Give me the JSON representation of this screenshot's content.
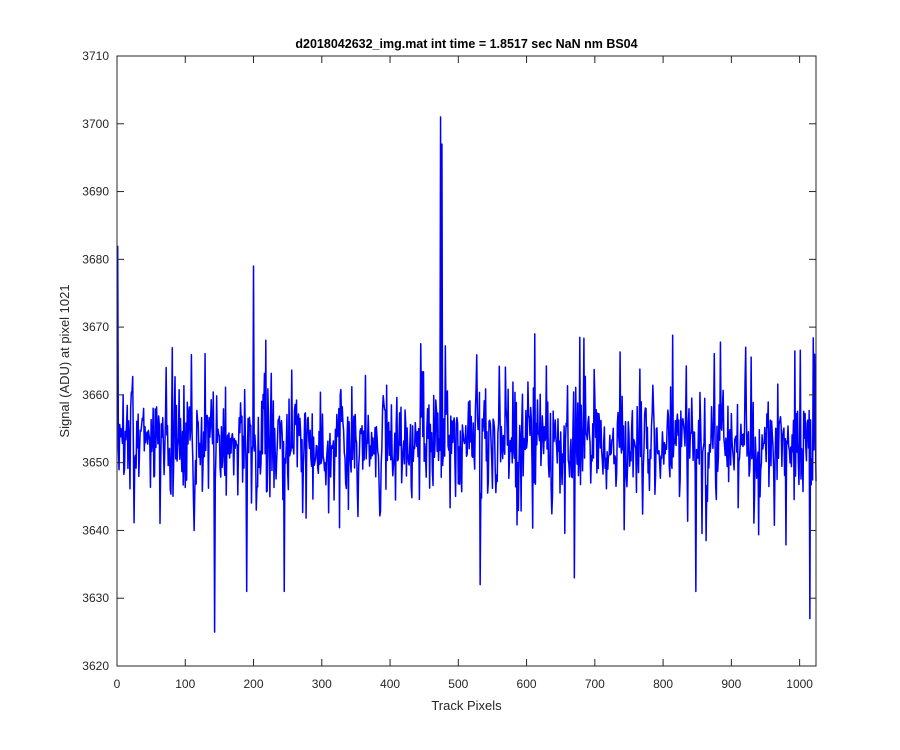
{
  "chart_data": {
    "type": "line",
    "title": "d2018042632_img.mat int time = 1.8517 sec  NaN nm BS04",
    "xlabel": "Track Pixels",
    "ylabel": "Signal (ADU) at pixel 1021",
    "xlim": [
      0,
      1024
    ],
    "ylim": [
      3620,
      3710
    ],
    "xticks": [
      0,
      100,
      200,
      300,
      400,
      500,
      600,
      700,
      800,
      900,
      1000
    ],
    "yticks": [
      3620,
      3630,
      3640,
      3650,
      3660,
      3670,
      3680,
      3690,
      3700,
      3710
    ],
    "grid": false,
    "colors": {
      "line": "#0000ff",
      "axes": "#262626",
      "background": "#ffffff"
    },
    "series": [
      {
        "x_start": 1,
        "x_end": 1024,
        "n_points": 1024,
        "baseline": 3653,
        "noise_range": [
          3642,
          3665
        ],
        "peaks": [
          {
            "x": 1,
            "y": 3682
          },
          {
            "x": 143,
            "y": 3625
          },
          {
            "x": 190,
            "y": 3631
          },
          {
            "x": 200,
            "y": 3679
          },
          {
            "x": 245,
            "y": 3631
          },
          {
            "x": 474,
            "y": 3701
          },
          {
            "x": 476,
            "y": 3697
          },
          {
            "x": 532,
            "y": 3632
          },
          {
            "x": 612,
            "y": 3669
          },
          {
            "x": 670,
            "y": 3633
          },
          {
            "x": 848,
            "y": 3631
          },
          {
            "x": 1015,
            "y": 3627
          },
          {
            "x": 1022,
            "y": 3666
          }
        ]
      }
    ]
  }
}
